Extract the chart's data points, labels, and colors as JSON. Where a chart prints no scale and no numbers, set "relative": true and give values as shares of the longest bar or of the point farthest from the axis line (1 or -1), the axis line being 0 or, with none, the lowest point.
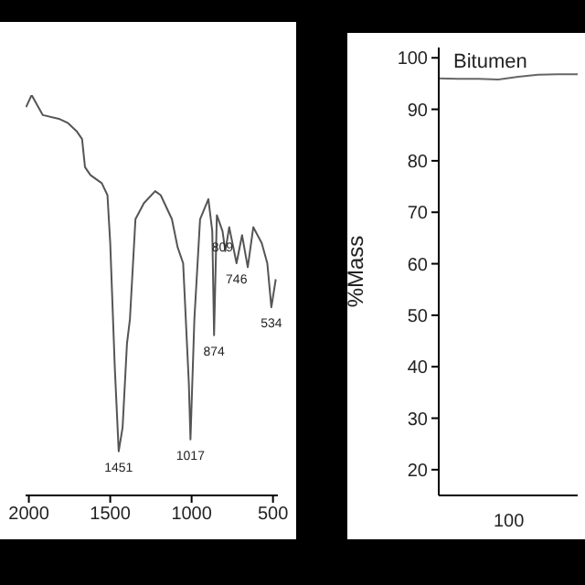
{
  "chart_data": [
    {
      "type": "line",
      "relative": true,
      "xlim": [
        2020,
        470
      ],
      "xticks": [
        2000,
        1500,
        1000,
        500
      ],
      "x": [
        2017,
        1983,
        1914,
        1810,
        1759,
        1707,
        1673,
        1655,
        1621,
        1552,
        1517,
        1500,
        1472,
        1448,
        1424,
        1397,
        1379,
        1345,
        1293,
        1224,
        1190,
        1121,
        1086,
        1052,
        1017,
        1007,
        983,
        948,
        897,
        873,
        862,
        845,
        810,
        793,
        769,
        724,
        690,
        655,
        621,
        569,
        535,
        510,
        483
      ],
      "series": [
        {
          "color": "#555555",
          "values": [
            0.97,
            1,
            0.95,
            0.94,
            0.93,
            0.91,
            0.89,
            0.82,
            0.8,
            0.78,
            0.75,
            0.63,
            0.32,
            0.11,
            0.17,
            0.38,
            0.44,
            0.69,
            0.73,
            0.76,
            0.75,
            0.69,
            0.62,
            0.58,
            0.28,
            0.14,
            0.44,
            0.69,
            0.74,
            0.66,
            0.4,
            0.7,
            0.66,
            0.61,
            0.67,
            0.58,
            0.65,
            0.57,
            0.67,
            0.63,
            0.58,
            0.47,
            0.54
          ]
        }
      ],
      "annotations": [
        {
          "text": "1451",
          "x": 1448,
          "y": 0.11
        },
        {
          "text": "1017",
          "x": 1007,
          "y": 0.14
        },
        {
          "text": "874",
          "x": 862,
          "y": 0.4
        },
        {
          "text": "809",
          "x": 810,
          "y": 0.66
        },
        {
          "text": "746",
          "x": 724,
          "y": 0.58
        },
        {
          "text": "534",
          "x": 510,
          "y": 0.47
        }
      ]
    },
    {
      "type": "line",
      "ylabel": "%Mass",
      "categories": [
        null,
        null,
        null,
        null,
        null,
        null,
        null,
        null
      ],
      "ylim": [
        15,
        102
      ],
      "yticks": [
        20,
        30,
        40,
        50,
        60,
        70,
        80,
        90,
        100
      ],
      "legend": "top left",
      "series": [
        {
          "name": "Bitumen",
          "color": "#666666",
          "values": [
            96,
            95.9,
            95.9,
            95.8,
            96.3,
            96.7,
            96.8,
            96.8
          ]
        }
      ],
      "annotations": [
        "100"
      ]
    }
  ]
}
